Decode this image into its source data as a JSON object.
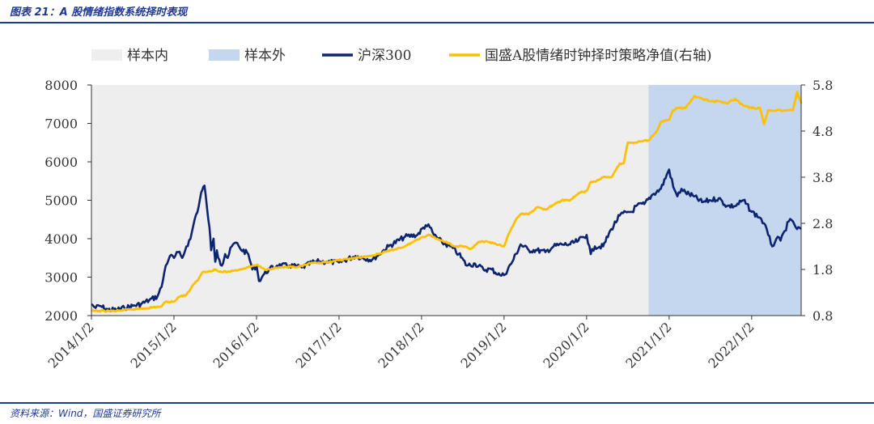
{
  "header": {
    "title": "图表 21：A 股情绪指数系统择时表现"
  },
  "footer": {
    "source": "资料来源：Wind，国盛证券研究所"
  },
  "colors": {
    "in_sample": "#eeeeee",
    "out_sample": "#c5d6ef",
    "hs300": "#0d2470",
    "strategy": "#ffc000"
  },
  "chart_data": {
    "type": "line",
    "title": "",
    "legend": [
      {
        "key": "in_sample",
        "label": "样本内",
        "style": "band"
      },
      {
        "key": "out_sample",
        "label": "样本外",
        "style": "band"
      },
      {
        "key": "hs300",
        "label": "沪深300",
        "style": "line"
      },
      {
        "key": "strategy",
        "label": "国盛A股情绪时钟择时策略净值(右轴)",
        "style": "line"
      }
    ],
    "x_domain": [
      2014.0,
      2022.6
    ],
    "x_ticks": [
      "2014/1/2",
      "2015/1/2",
      "2016/1/2",
      "2017/1/2",
      "2018/1/2",
      "2019/1/2",
      "2020/1/2",
      "2021/1/2",
      "2022/1/2"
    ],
    "x_tick_values": [
      2014,
      2015,
      2016,
      2017,
      2018,
      2019,
      2020,
      2021,
      2022
    ],
    "y_left": {
      "range": [
        2000,
        8000
      ],
      "ticks": [
        "2000",
        "3000",
        "4000",
        "5000",
        "6000",
        "7000",
        "8000"
      ],
      "tick_values": [
        2000,
        3000,
        4000,
        5000,
        6000,
        7000,
        8000
      ]
    },
    "y_right": {
      "range": [
        0.8,
        5.8
      ],
      "ticks": [
        "0.8",
        "1.8",
        "2.8",
        "3.8",
        "4.8",
        "5.8"
      ],
      "tick_values": [
        0.8,
        1.8,
        2.8,
        3.8,
        4.8,
        5.8
      ]
    },
    "out_of_sample_start": 2020.75,
    "series": [
      {
        "name": "沪深300",
        "axis": "left",
        "color_key": "hs300",
        "x": [
          2014.0,
          2014.05,
          2014.1,
          2014.2,
          2014.3,
          2014.4,
          2014.5,
          2014.6,
          2014.7,
          2014.8,
          2014.85,
          2014.9,
          2014.95,
          2015.0,
          2015.05,
          2015.1,
          2015.15,
          2015.2,
          2015.25,
          2015.3,
          2015.33,
          2015.37,
          2015.4,
          2015.43,
          2015.45,
          2015.48,
          2015.5,
          2015.52,
          2015.55,
          2015.58,
          2015.62,
          2015.65,
          2015.7,
          2015.75,
          2015.8,
          2015.9,
          2015.95,
          2016.0,
          2016.03,
          2016.08,
          2016.15,
          2016.25,
          2016.4,
          2016.55,
          2016.7,
          2016.85,
          2017.0,
          2017.2,
          2017.4,
          2017.6,
          2017.8,
          2017.95,
          2018.05,
          2018.1,
          2018.15,
          2018.25,
          2018.35,
          2018.45,
          2018.55,
          2018.65,
          2018.75,
          2018.85,
          2018.95,
          2019.0,
          2019.1,
          2019.2,
          2019.3,
          2019.4,
          2019.5,
          2019.6,
          2019.7,
          2019.8,
          2019.9,
          2020.0,
          2020.05,
          2020.1,
          2020.2,
          2020.3,
          2020.4,
          2020.5,
          2020.55,
          2020.6,
          2020.7,
          2020.8,
          2020.9,
          2021.0,
          2021.05,
          2021.1,
          2021.15,
          2021.2,
          2021.3,
          2021.4,
          2021.5,
          2021.6,
          2021.7,
          2021.8,
          2021.9,
          2022.0,
          2022.1,
          2022.15,
          2022.2,
          2022.25,
          2022.3,
          2022.35,
          2022.4,
          2022.45,
          2022.5,
          2022.55,
          2022.6
        ],
        "values": [
          2300,
          2200,
          2250,
          2150,
          2150,
          2200,
          2250,
          2300,
          2400,
          2500,
          2750,
          3300,
          3550,
          3500,
          3650,
          3500,
          3800,
          4000,
          4500,
          4850,
          5200,
          5380,
          4800,
          4300,
          3700,
          4000,
          3400,
          3700,
          3450,
          3300,
          3600,
          3500,
          3800,
          3900,
          3750,
          3600,
          3200,
          3300,
          2900,
          3050,
          3200,
          3300,
          3300,
          3250,
          3400,
          3400,
          3380,
          3550,
          3450,
          3800,
          4050,
          4100,
          4350,
          4300,
          4100,
          3900,
          3800,
          3600,
          3300,
          3350,
          3200,
          3200,
          3050,
          3050,
          3400,
          3850,
          3700,
          3700,
          3650,
          3800,
          3850,
          3850,
          3950,
          4100,
          3600,
          3800,
          3800,
          4250,
          4600,
          4700,
          4700,
          4850,
          4900,
          5150,
          5300,
          5800,
          5350,
          5100,
          5300,
          5200,
          5100,
          4950,
          5000,
          5050,
          4850,
          4850,
          5000,
          4700,
          4550,
          4400,
          4100,
          3800,
          4000,
          3950,
          4200,
          4450,
          4450,
          4250,
          4250
        ]
      },
      {
        "name": "国盛A股情绪时钟择时策略净值(右轴)",
        "axis": "right",
        "color_key": "strategy",
        "x": [
          2014.0,
          2014.3,
          2014.6,
          2014.85,
          2014.9,
          2015.0,
          2015.05,
          2015.15,
          2015.25,
          2015.3,
          2015.35,
          2015.4,
          2015.5,
          2015.55,
          2015.65,
          2015.8,
          2015.9,
          2016.0,
          2016.1,
          2016.3,
          2016.5,
          2016.7,
          2016.85,
          2017.0,
          2017.2,
          2017.4,
          2017.6,
          2017.8,
          2018.0,
          2018.1,
          2018.2,
          2018.3,
          2018.4,
          2018.5,
          2018.6,
          2018.7,
          2018.8,
          2018.9,
          2019.0,
          2019.05,
          2019.15,
          2019.2,
          2019.3,
          2019.4,
          2019.5,
          2019.6,
          2019.7,
          2019.8,
          2019.9,
          2020.0,
          2020.05,
          2020.1,
          2020.2,
          2020.3,
          2020.4,
          2020.45,
          2020.5,
          2020.55,
          2020.6,
          2020.7,
          2020.75,
          2020.85,
          2020.9,
          2021.0,
          2021.05,
          2021.1,
          2021.2,
          2021.3,
          2021.4,
          2021.5,
          2021.6,
          2021.7,
          2021.8,
          2021.9,
          2022.0,
          2022.1,
          2022.15,
          2022.2,
          2022.3,
          2022.4,
          2022.45,
          2022.5,
          2022.55,
          2022.6
        ],
        "values": [
          0.9,
          0.9,
          0.95,
          1.0,
          1.1,
          1.1,
          1.2,
          1.25,
          1.5,
          1.6,
          1.75,
          1.75,
          1.8,
          1.75,
          1.75,
          1.8,
          1.85,
          1.9,
          1.8,
          1.85,
          1.85,
          1.95,
          1.95,
          2.0,
          2.05,
          2.1,
          2.2,
          2.3,
          2.5,
          2.55,
          2.45,
          2.4,
          2.3,
          2.3,
          2.25,
          2.4,
          2.4,
          2.35,
          2.3,
          2.55,
          2.9,
          3.0,
          3.0,
          3.15,
          3.1,
          3.2,
          3.3,
          3.3,
          3.45,
          3.5,
          3.7,
          3.7,
          3.8,
          3.8,
          4.1,
          4.1,
          4.55,
          4.55,
          4.55,
          4.6,
          4.6,
          4.8,
          5.0,
          5.05,
          5.25,
          5.3,
          5.3,
          5.55,
          5.5,
          5.45,
          5.45,
          5.4,
          5.5,
          5.35,
          5.3,
          5.3,
          4.95,
          5.25,
          5.25,
          5.25,
          5.25,
          5.25,
          5.65,
          5.4
        ]
      }
    ]
  }
}
